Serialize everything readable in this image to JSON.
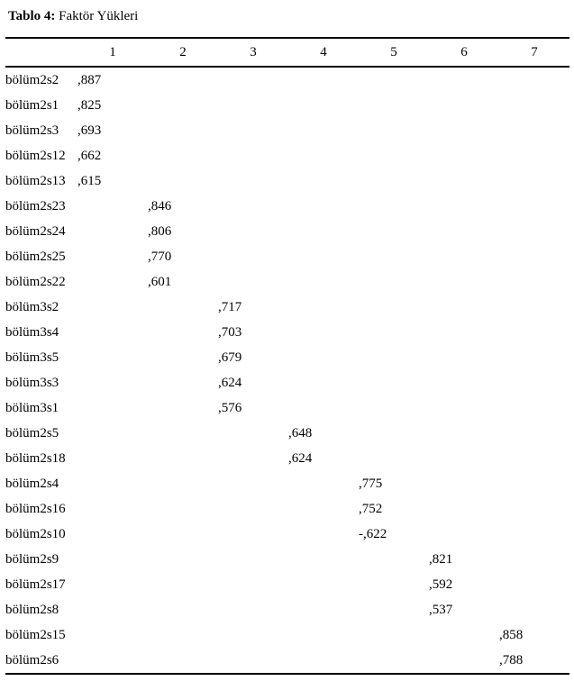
{
  "title_bold": "Tablo 4:",
  "title_rest": " Faktör Yükleri",
  "columns": [
    "1",
    "2",
    "3",
    "4",
    "5",
    "6",
    "7"
  ],
  "rows": [
    {
      "label": "bölüm2s2",
      "values": [
        ",887",
        "",
        "",
        "",
        "",
        "",
        ""
      ]
    },
    {
      "label": "bölüm2s1",
      "values": [
        ",825",
        "",
        "",
        "",
        "",
        "",
        ""
      ]
    },
    {
      "label": "bölüm2s3",
      "values": [
        ",693",
        "",
        "",
        "",
        "",
        "",
        ""
      ]
    },
    {
      "label": "bölüm2s12",
      "values": [
        ",662",
        "",
        "",
        "",
        "",
        "",
        ""
      ]
    },
    {
      "label": "bölüm2s13",
      "values": [
        ",615",
        "",
        "",
        "",
        "",
        "",
        ""
      ]
    },
    {
      "label": "bölüm2s23",
      "values": [
        "",
        ",846",
        "",
        "",
        "",
        "",
        ""
      ]
    },
    {
      "label": "bölüm2s24",
      "values": [
        "",
        ",806",
        "",
        "",
        "",
        "",
        ""
      ]
    },
    {
      "label": "bölüm2s25",
      "values": [
        "",
        ",770",
        "",
        "",
        "",
        "",
        ""
      ]
    },
    {
      "label": "bölüm2s22",
      "values": [
        "",
        ",601",
        "",
        "",
        "",
        "",
        ""
      ]
    },
    {
      "label": "bölüm3s2",
      "values": [
        "",
        "",
        ",717",
        "",
        "",
        "",
        ""
      ]
    },
    {
      "label": "bölüm3s4",
      "values": [
        "",
        "",
        ",703",
        "",
        "",
        "",
        ""
      ]
    },
    {
      "label": "bölüm3s5",
      "values": [
        "",
        "",
        ",679",
        "",
        "",
        "",
        ""
      ]
    },
    {
      "label": "bölüm3s3",
      "values": [
        "",
        "",
        ",624",
        "",
        "",
        "",
        ""
      ]
    },
    {
      "label": "bölüm3s1",
      "values": [
        "",
        "",
        ",576",
        "",
        "",
        "",
        ""
      ]
    },
    {
      "label": "bölüm2s5",
      "values": [
        "",
        "",
        "",
        ",648",
        "",
        "",
        ""
      ]
    },
    {
      "label": "bölüm2s18",
      "values": [
        "",
        "",
        "",
        ",624",
        "",
        "",
        ""
      ]
    },
    {
      "label": "bölüm2s4",
      "values": [
        "",
        "",
        "",
        "",
        ",775",
        "",
        ""
      ]
    },
    {
      "label": "bölüm2s16",
      "values": [
        "",
        "",
        "",
        "",
        ",752",
        "",
        ""
      ]
    },
    {
      "label": "bölüm2s10",
      "values": [
        "",
        "",
        "",
        "",
        "-,622",
        "",
        ""
      ]
    },
    {
      "label": "bölüm2s9",
      "values": [
        "",
        "",
        "",
        "",
        "",
        ",821",
        ""
      ]
    },
    {
      "label": "bölüm2s17",
      "values": [
        "",
        "",
        "",
        "",
        "",
        ",592",
        ""
      ]
    },
    {
      "label": "bölüm2s8",
      "values": [
        "",
        "",
        "",
        "",
        "",
        ",537",
        ""
      ]
    },
    {
      "label": "bölüm2s15",
      "values": [
        "",
        "",
        "",
        "",
        "",
        "",
        ",858"
      ]
    },
    {
      "label": "bölüm2s6",
      "values": [
        "",
        "",
        "",
        "",
        "",
        "",
        ",788"
      ]
    }
  ]
}
